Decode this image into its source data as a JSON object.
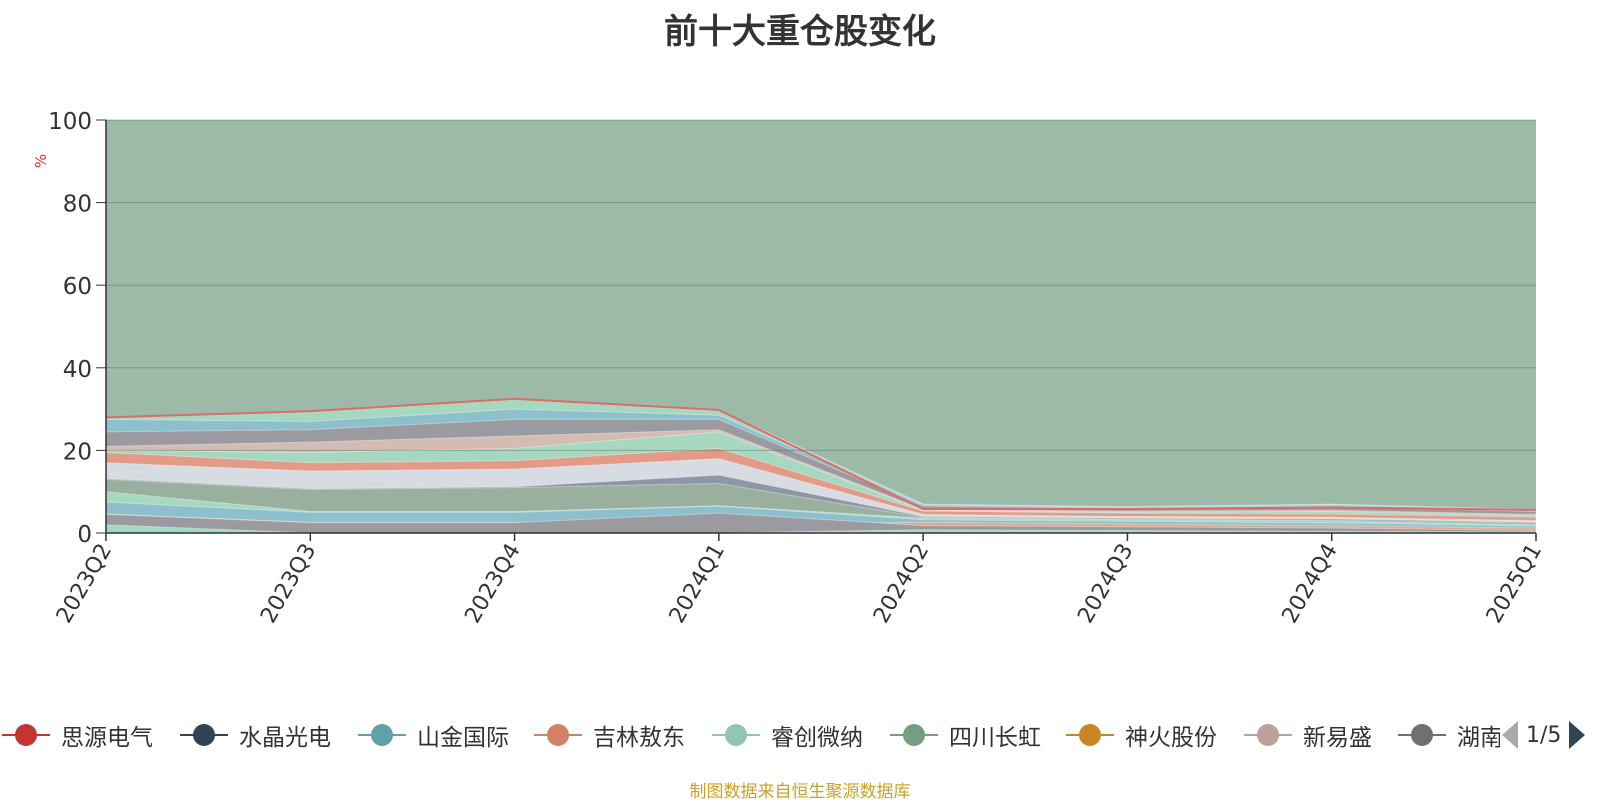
{
  "title": "前十大重仓股变化",
  "y_unit": "%",
  "source_note": "制图数据来自恒生聚源数据库",
  "legend": {
    "items": [
      {
        "label": "思源电气",
        "color": "#c23531"
      },
      {
        "label": "水晶光电",
        "color": "#2f4554"
      },
      {
        "label": "山金国际",
        "color": "#61a0a8"
      },
      {
        "label": "吉林敖东",
        "color": "#d48265"
      },
      {
        "label": "睿创微纳",
        "color": "#91c7ae"
      },
      {
        "label": "四川长虹",
        "color": "#749f83"
      },
      {
        "label": "神火股份",
        "color": "#ca8622"
      },
      {
        "label": "新易盛",
        "color": "#bda29a"
      },
      {
        "label": "湖南",
        "color": "#6e7074"
      }
    ],
    "page_indicator": "1/5",
    "prev_color": "#aaaaaa",
    "next_color": "#2f4554"
  },
  "chart_data": {
    "type": "area",
    "stacked": true,
    "x": [
      "2023Q2",
      "2023Q3",
      "2023Q4",
      "2024Q1",
      "2024Q2",
      "2024Q3",
      "2024Q4",
      "2025Q1"
    ],
    "ylim": [
      0,
      100
    ],
    "yticks": [
      0,
      20,
      40,
      60,
      80,
      100
    ],
    "ylabel": "%",
    "grid": true,
    "background_color": "#9dbaa8",
    "layer_boundaries": [
      {
        "color": "#a6d8c0",
        "values": [
          2.0,
          0.0,
          0.0,
          0.0,
          0.8,
          0.6,
          0.4,
          0.3
        ]
      },
      {
        "color": "#9a9aa0",
        "values": [
          4.5,
          2.5,
          2.5,
          4.8,
          1.8,
          1.5,
          1.2,
          0.6
        ]
      },
      {
        "color": "#e0a994",
        "values": [
          4.6,
          2.6,
          2.6,
          2.0,
          2.6,
          2.2,
          1.8,
          1.2
        ]
      },
      {
        "color": "#8dbfcc",
        "values": [
          7.5,
          5.0,
          5.0,
          6.5,
          3.2,
          2.8,
          2.4,
          1.7
        ]
      },
      {
        "color": "#a6d8c0",
        "values": [
          10.0,
          5.2,
          5.2,
          6.6,
          3.6,
          3.2,
          2.9,
          2.0
        ]
      },
      {
        "color": "#9ab09e",
        "values": [
          13.0,
          10.5,
          11.0,
          12.0,
          3.8,
          3.4,
          3.1,
          2.4
        ]
      },
      {
        "color": "#8d98a4",
        "values": [
          13.2,
          10.7,
          11.2,
          14.0,
          4.0,
          3.6,
          3.4,
          2.6
        ]
      },
      {
        "color": "#d7dce2",
        "values": [
          17.0,
          15.0,
          15.5,
          18.0,
          4.5,
          4.0,
          3.8,
          3.0
        ]
      },
      {
        "color": "#e39a86",
        "values": [
          19.5,
          17.0,
          17.5,
          20.5,
          5.3,
          4.8,
          4.6,
          3.8
        ]
      },
      {
        "color": "#a6d8c0",
        "values": [
          20.0,
          19.5,
          20.5,
          24.5,
          5.5,
          5.0,
          5.2,
          4.2
        ]
      },
      {
        "color": "#d2bcb4",
        "values": [
          21.0,
          22.0,
          23.5,
          25.0,
          5.7,
          5.3,
          5.5,
          4.5
        ]
      },
      {
        "color": "#9a9aa0",
        "values": [
          24.5,
          25.0,
          27.5,
          27.5,
          6.5,
          6.0,
          6.5,
          5.2
        ]
      },
      {
        "color": "#8dbfcc",
        "values": [
          27.5,
          27.0,
          30.0,
          28.5,
          6.8,
          6.2,
          6.8,
          5.5
        ]
      },
      {
        "color": "#a6d8c0",
        "values": [
          28.0,
          29.5,
          32.5,
          29.8,
          7.0,
          6.4,
          7.0,
          5.7
        ]
      }
    ],
    "top_line": {
      "color": "#e06a6a",
      "values": [
        28.0,
        29.5,
        32.5,
        29.8,
        5.8,
        5.8,
        6.2,
        5.6
      ]
    }
  }
}
